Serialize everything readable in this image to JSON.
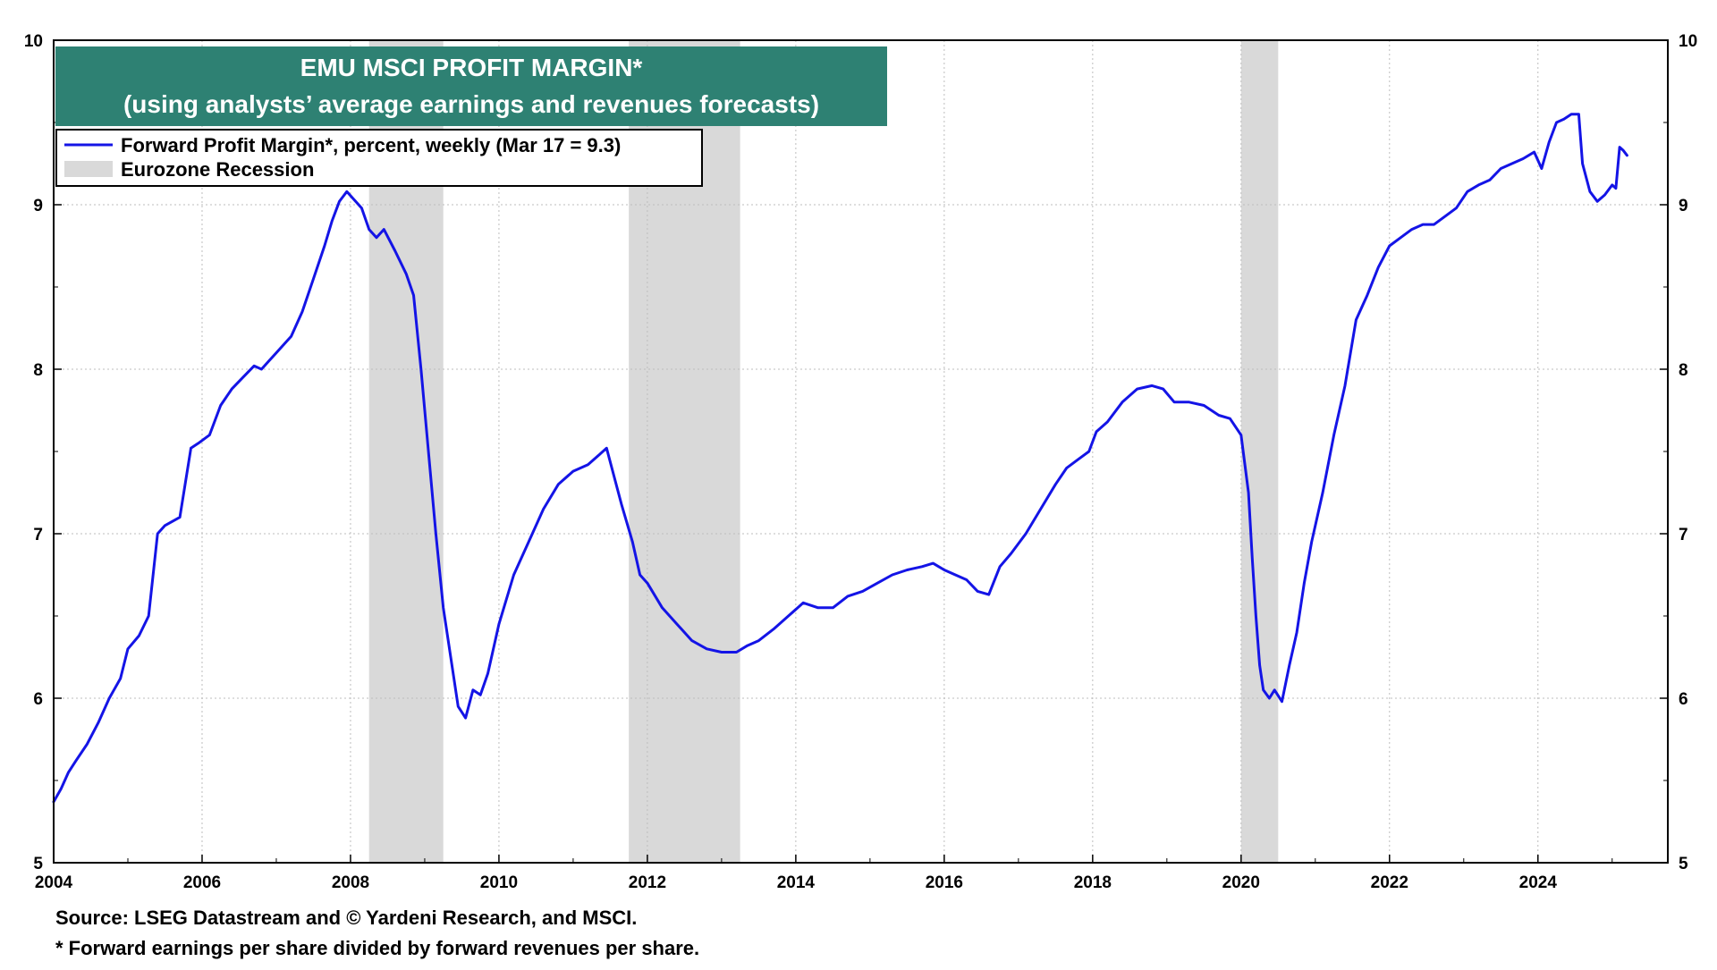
{
  "chart_data": {
    "type": "line",
    "title": "EMU MSCI PROFIT MARGIN*",
    "subtitle": "(using analysts’ average earnings and revenues forecasts)",
    "xlabel": "",
    "ylabel": "",
    "xlim": [
      2004,
      2025.75
    ],
    "ylim": [
      5,
      10
    ],
    "x_ticks": [
      "2004",
      "2006",
      "2008",
      "2010",
      "2012",
      "2014",
      "2016",
      "2018",
      "2020",
      "2022",
      "2024"
    ],
    "y_ticks": [
      "5",
      "6",
      "7",
      "8",
      "9",
      "10"
    ],
    "grid": true,
    "legend_position": "top-left",
    "legend": [
      {
        "label": "Forward Profit Margin*, percent, weekly (Mar 17 = 9.3)",
        "kind": "line"
      },
      {
        "label": "Eurozone Recession",
        "kind": "band"
      }
    ],
    "recessions": [
      {
        "start": 2008.25,
        "end": 2009.25
      },
      {
        "start": 2011.75,
        "end": 2013.25
      },
      {
        "start": 2020.0,
        "end": 2020.5
      }
    ],
    "series": [
      {
        "name": "Forward Profit Margin*, percent, weekly (Mar 17 = 9.3)",
        "color": "#1414e6",
        "x": [
          2004.0,
          2004.1,
          2004.2,
          2004.3,
          2004.45,
          2004.6,
          2004.75,
          2004.9,
          2005.0,
          2005.15,
          2005.28,
          2005.4,
          2005.5,
          2005.7,
          2005.85,
          2005.95,
          2006.1,
          2006.25,
          2006.4,
          2006.55,
          2006.7,
          2006.8,
          2006.9,
          2007.0,
          2007.2,
          2007.35,
          2007.5,
          2007.65,
          2007.75,
          2007.85,
          2007.95,
          2008.05,
          2008.15,
          2008.25,
          2008.35,
          2008.45,
          2008.6,
          2008.75,
          2008.85,
          2008.95,
          2009.05,
          2009.15,
          2009.25,
          2009.35,
          2009.45,
          2009.55,
          2009.65,
          2009.75,
          2009.85,
          2010.0,
          2010.2,
          2010.4,
          2010.6,
          2010.8,
          2011.0,
          2011.2,
          2011.35,
          2011.45,
          2011.55,
          2011.65,
          2011.8,
          2011.9,
          2012.0,
          2012.2,
          2012.4,
          2012.6,
          2012.8,
          2013.0,
          2013.2,
          2013.35,
          2013.5,
          2013.7,
          2013.9,
          2014.1,
          2014.3,
          2014.5,
          2014.7,
          2014.9,
          2015.1,
          2015.3,
          2015.5,
          2015.7,
          2015.85,
          2016.0,
          2016.15,
          2016.3,
          2016.45,
          2016.6,
          2016.75,
          2016.9,
          2017.1,
          2017.3,
          2017.5,
          2017.65,
          2017.8,
          2017.95,
          2018.05,
          2018.2,
          2018.4,
          2018.6,
          2018.8,
          2018.95,
          2019.1,
          2019.3,
          2019.5,
          2019.7,
          2019.85,
          2020.0,
          2020.1,
          2020.15,
          2020.2,
          2020.25,
          2020.3,
          2020.38,
          2020.45,
          2020.55,
          2020.65,
          2020.75,
          2020.85,
          2020.95,
          2021.1,
          2021.25,
          2021.4,
          2021.55,
          2021.7,
          2021.85,
          2022.0,
          2022.15,
          2022.3,
          2022.45,
          2022.6,
          2022.75,
          2022.9,
          2023.05,
          2023.2,
          2023.35,
          2023.5,
          2023.65,
          2023.8,
          2023.95,
          2024.05,
          2024.15,
          2024.25,
          2024.35,
          2024.45,
          2024.55,
          2024.6,
          2024.7,
          2024.8,
          2024.9,
          2025.0,
          2025.05,
          2025.1,
          2025.15,
          2025.2
        ],
        "y": [
          5.37,
          5.45,
          5.55,
          5.62,
          5.72,
          5.85,
          6.0,
          6.12,
          6.3,
          6.38,
          6.5,
          7.0,
          7.05,
          7.1,
          7.52,
          7.55,
          7.6,
          7.78,
          7.88,
          7.95,
          8.02,
          8.0,
          8.05,
          8.1,
          8.2,
          8.35,
          8.55,
          8.75,
          8.9,
          9.02,
          9.08,
          9.03,
          8.98,
          8.85,
          8.8,
          8.85,
          8.72,
          8.58,
          8.45,
          8.0,
          7.5,
          7.0,
          6.55,
          6.25,
          5.95,
          5.88,
          6.05,
          6.02,
          6.15,
          6.45,
          6.75,
          6.95,
          7.15,
          7.3,
          7.38,
          7.42,
          7.48,
          7.52,
          7.35,
          7.18,
          6.95,
          6.75,
          6.7,
          6.55,
          6.45,
          6.35,
          6.3,
          6.28,
          6.28,
          6.32,
          6.35,
          6.42,
          6.5,
          6.58,
          6.55,
          6.55,
          6.62,
          6.65,
          6.7,
          6.75,
          6.78,
          6.8,
          6.82,
          6.78,
          6.75,
          6.72,
          6.65,
          6.63,
          6.8,
          6.88,
          7.0,
          7.15,
          7.3,
          7.4,
          7.45,
          7.5,
          7.62,
          7.68,
          7.8,
          7.88,
          7.9,
          7.88,
          7.8,
          7.8,
          7.78,
          7.72,
          7.7,
          7.6,
          7.25,
          6.85,
          6.5,
          6.2,
          6.05,
          6.0,
          6.05,
          5.98,
          6.2,
          6.4,
          6.7,
          6.95,
          7.25,
          7.6,
          7.9,
          8.3,
          8.45,
          8.62,
          8.75,
          8.8,
          8.85,
          8.88,
          8.88,
          8.93,
          8.98,
          9.08,
          9.12,
          9.15,
          9.22,
          9.25,
          9.28,
          9.32,
          9.22,
          9.38,
          9.5,
          9.52,
          9.55,
          9.55,
          9.25,
          9.08,
          9.02,
          9.06,
          9.12,
          9.1,
          9.35,
          9.33,
          9.3
        ]
      }
    ],
    "footnotes": [
      "Source: LSEG Datastream and © Yardeni Research, and MSCI.",
      "* Forward earnings per share divided by forward revenues per share."
    ]
  }
}
